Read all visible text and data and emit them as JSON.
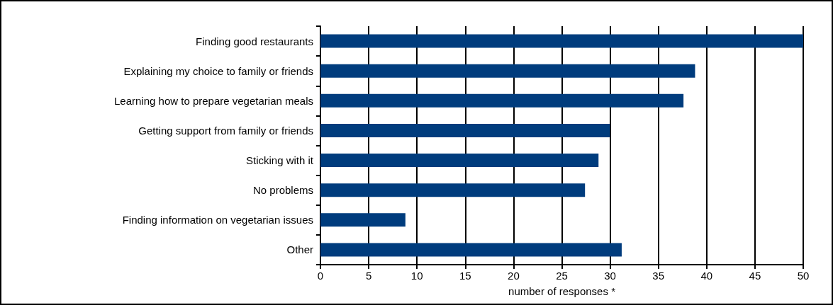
{
  "chart_data": {
    "type": "bar",
    "orientation": "horizontal",
    "categories": [
      "Finding good restaurants",
      "Explaining my choice to family or friends",
      "Learning how to prepare vegetarian meals",
      "Getting support from family or friends",
      "Sticking with it",
      "No problems",
      "Finding information on vegetarian issues",
      "Other"
    ],
    "values": [
      50,
      38.8,
      37.6,
      30,
      28.8,
      27.4,
      8.8,
      31.2
    ],
    "color": "#003c7d",
    "xlim": [
      0,
      50
    ],
    "xticks": [
      0,
      5,
      10,
      15,
      20,
      25,
      30,
      35,
      40,
      45,
      50
    ],
    "xlabel": "number of responses *",
    "grid": "x"
  }
}
